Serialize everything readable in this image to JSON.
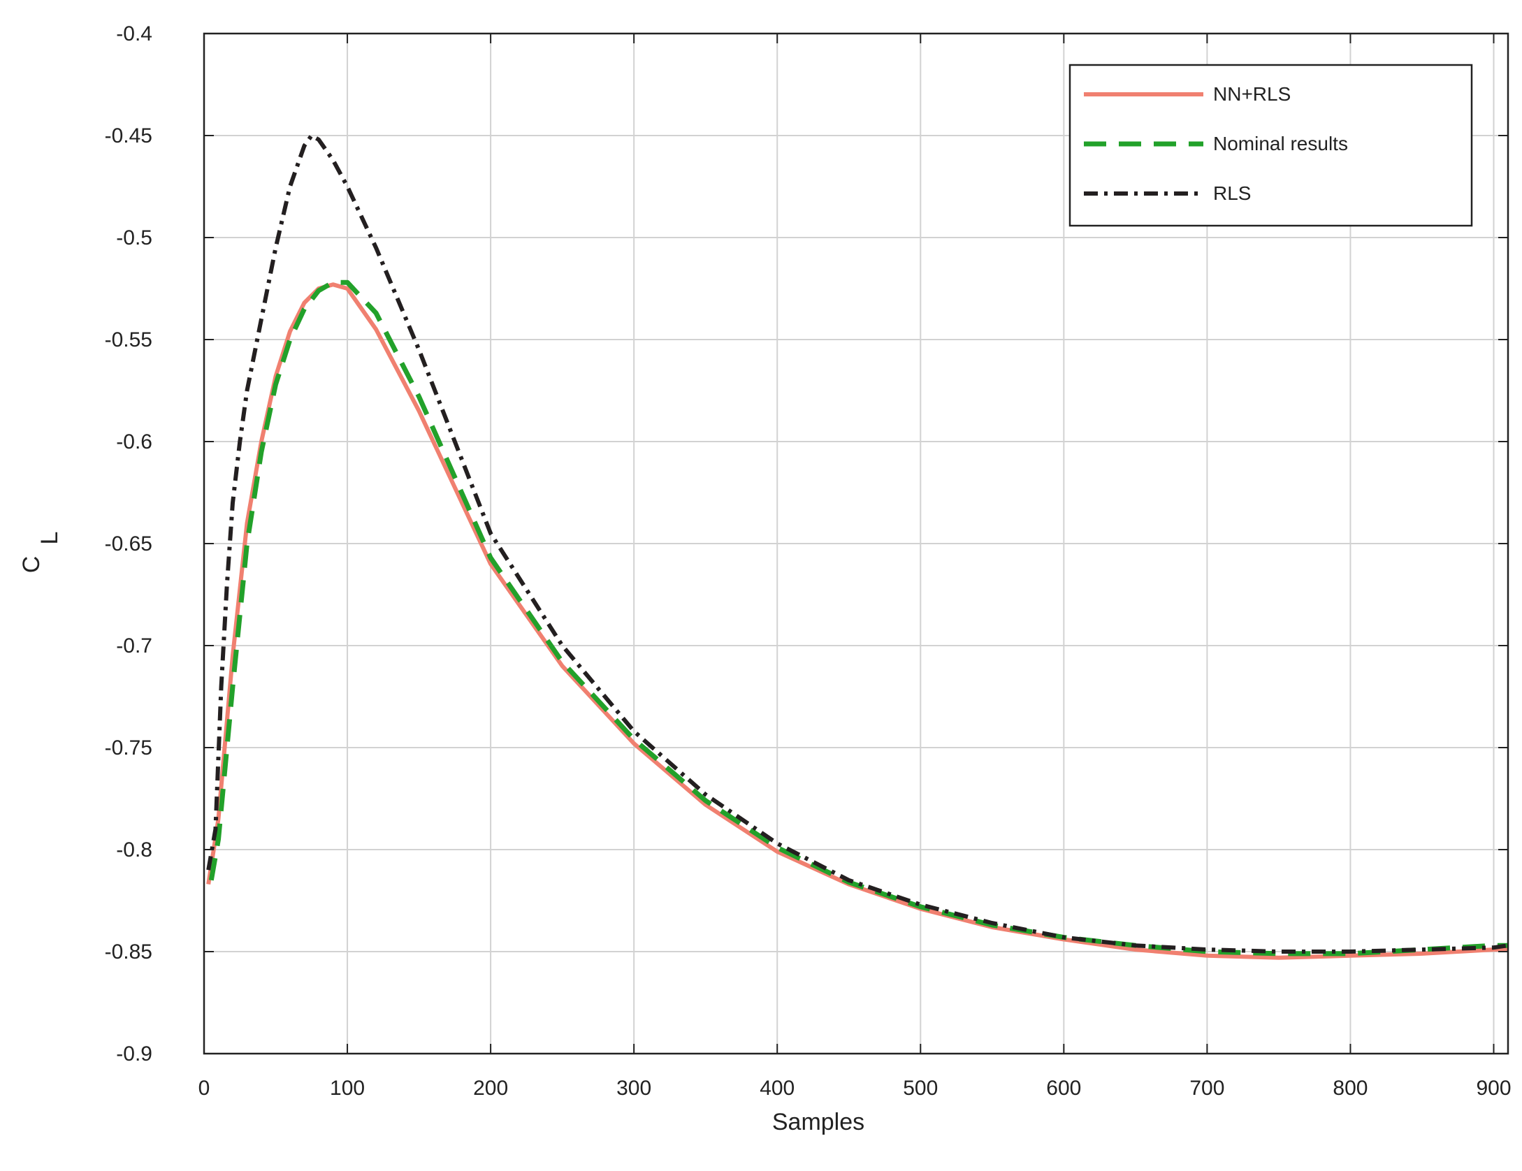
{
  "chart_data": {
    "type": "line",
    "title": "",
    "xlabel": "Samples",
    "ylabel_main": "C",
    "ylabel_sub": "L",
    "xlim": [
      0,
      910
    ],
    "ylim": [
      -0.9,
      -0.4
    ],
    "xticks": [
      0,
      100,
      200,
      300,
      400,
      500,
      600,
      700,
      800,
      900
    ],
    "yticks": [
      -0.4,
      -0.45,
      -0.5,
      -0.55,
      -0.6,
      -0.65,
      -0.7,
      -0.75,
      -0.8,
      -0.85,
      -0.9
    ],
    "grid": true,
    "legend_position": "top-right",
    "series": [
      {
        "name": "NN+RLS",
        "color": "#f08070",
        "style": "solid",
        "x": [
          3,
          10,
          20,
          30,
          40,
          50,
          60,
          70,
          80,
          90,
          100,
          120,
          150,
          200,
          250,
          300,
          350,
          400,
          450,
          500,
          550,
          600,
          650,
          700,
          750,
          800,
          850,
          900,
          910
        ],
        "y": [
          -0.817,
          -0.785,
          -0.705,
          -0.64,
          -0.6,
          -0.568,
          -0.546,
          -0.532,
          -0.525,
          -0.523,
          -0.525,
          -0.545,
          -0.585,
          -0.66,
          -0.71,
          -0.748,
          -0.778,
          -0.801,
          -0.817,
          -0.829,
          -0.838,
          -0.844,
          -0.849,
          -0.852,
          -0.853,
          -0.852,
          -0.851,
          -0.849,
          -0.849
        ]
      },
      {
        "name": "Nominal results",
        "color": "#22a12a",
        "style": "dashed",
        "x": [
          5,
          10,
          20,
          30,
          40,
          50,
          60,
          70,
          80,
          90,
          100,
          120,
          150,
          200,
          250,
          300,
          350,
          400,
          450,
          500,
          550,
          600,
          650,
          700,
          750,
          800,
          850,
          900,
          910
        ],
        "y": [
          -0.815,
          -0.795,
          -0.72,
          -0.65,
          -0.605,
          -0.572,
          -0.55,
          -0.535,
          -0.526,
          -0.522,
          -0.522,
          -0.537,
          -0.578,
          -0.657,
          -0.708,
          -0.746,
          -0.776,
          -0.799,
          -0.816,
          -0.828,
          -0.837,
          -0.843,
          -0.847,
          -0.85,
          -0.851,
          -0.851,
          -0.849,
          -0.847,
          -0.847
        ]
      },
      {
        "name": "RLS",
        "color": "#231f20",
        "style": "dashdot",
        "x": [
          3,
          8,
          12,
          16,
          20,
          25,
          30,
          40,
          50,
          60,
          70,
          75,
          80,
          90,
          100,
          120,
          150,
          200,
          250,
          300,
          350,
          400,
          450,
          500,
          550,
          600,
          650,
          700,
          750,
          800,
          850,
          900,
          910
        ],
        "y": [
          -0.81,
          -0.79,
          -0.72,
          -0.67,
          -0.63,
          -0.6,
          -0.575,
          -0.54,
          -0.505,
          -0.475,
          -0.455,
          -0.45,
          -0.452,
          -0.462,
          -0.475,
          -0.505,
          -0.555,
          -0.645,
          -0.7,
          -0.742,
          -0.773,
          -0.797,
          -0.815,
          -0.827,
          -0.836,
          -0.843,
          -0.847,
          -0.849,
          -0.85,
          -0.85,
          -0.849,
          -0.848,
          -0.847
        ]
      }
    ]
  }
}
